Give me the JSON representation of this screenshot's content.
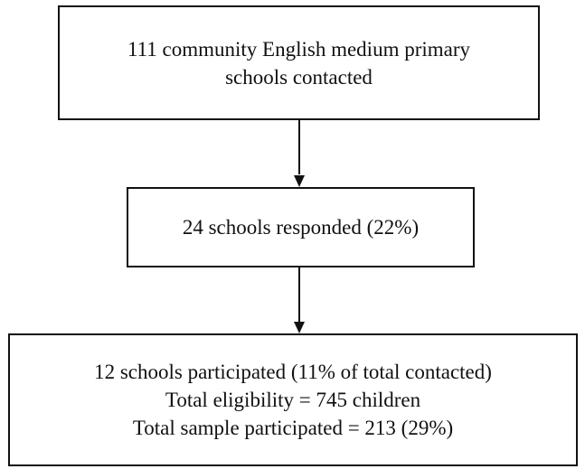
{
  "flowchart": {
    "step1": {
      "lines": [
        "111 community English medium primary",
        "schools contacted"
      ]
    },
    "step2": {
      "lines": [
        "24 schools responded (22%)"
      ]
    },
    "step3": {
      "lines": [
        "12 schools participated (11% of total contacted)",
        "Total eligibility = 745 children",
        "Total sample participated = 213 (29%)"
      ]
    }
  }
}
